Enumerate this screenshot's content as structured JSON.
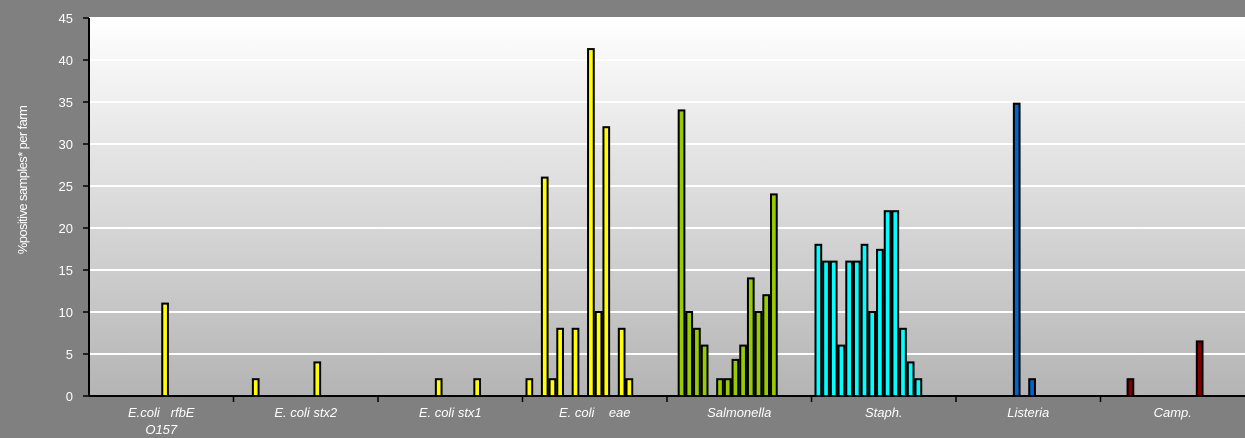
{
  "chart_data": {
    "type": "bar",
    "title": "",
    "xlabel": "",
    "ylabel": "%positive samples* per farm",
    "ylim": [
      0,
      45
    ],
    "yticks": [
      0,
      5,
      10,
      15,
      20,
      25,
      30,
      35,
      40,
      45
    ],
    "grid": true,
    "colors": {
      "background_outer": "#808080",
      "plot_top": "#ffffff",
      "plot_bottom": "#b4b4b4",
      "gridline": "#ffffff",
      "bar_edge": "#000000"
    },
    "groups": [
      {
        "label_lines": [
          "E.coli   rfbE",
          "O157"
        ],
        "color": "#ffff00",
        "values": [
          0,
          0,
          0,
          0,
          0,
          0,
          0,
          0,
          0,
          11,
          0,
          0,
          0,
          0,
          0,
          0,
          0,
          0
        ]
      },
      {
        "label_lines": [
          "E. coli stx2"
        ],
        "color": "#ffff00",
        "values": [
          0,
          0,
          2,
          0,
          0,
          0,
          0,
          0,
          0,
          0,
          4,
          0,
          0,
          0,
          0,
          0,
          0,
          0
        ]
      },
      {
        "label_lines": [
          "E. coli stx1"
        ],
        "color": "#ffff00",
        "values": [
          0,
          0,
          0,
          0,
          0,
          0,
          0,
          2,
          0,
          0,
          0,
          0,
          2,
          0,
          0,
          0,
          0,
          0
        ]
      },
      {
        "label_lines": [
          "E. coli    eae"
        ],
        "color": "#ffff00",
        "values": [
          2,
          0,
          26,
          2,
          8,
          0,
          8,
          0,
          41.3,
          10,
          32,
          0,
          8,
          2,
          0,
          0,
          0,
          0
        ]
      },
      {
        "label_lines": [
          "Salmonella"
        ],
        "color": "#99cc00",
        "values": [
          0,
          34,
          10,
          8,
          6,
          0,
          2,
          2,
          4.3,
          6,
          14,
          10,
          12,
          24,
          0,
          0,
          0,
          0
        ]
      },
      {
        "label_lines": [
          "Staph."
        ],
        "color": "#00ffff",
        "values": [
          18,
          16,
          16,
          6,
          16,
          16,
          18,
          10,
          17.4,
          22,
          22,
          8,
          4,
          2,
          0,
          0,
          0,
          0
        ]
      },
      {
        "label_lines": [
          "Listeria"
        ],
        "color": "#0066cc",
        "values": [
          0,
          0,
          0,
          0,
          0,
          0,
          0,
          34.8,
          0,
          2,
          0,
          0,
          0,
          0,
          0,
          0,
          0,
          0
        ]
      },
      {
        "label_lines": [
          "Camp."
        ],
        "color": "#800000",
        "values": [
          0,
          0,
          0,
          2,
          0,
          0,
          0,
          0,
          0,
          0,
          0,
          0,
          6.5,
          0,
          0,
          0,
          0,
          0
        ]
      }
    ]
  }
}
